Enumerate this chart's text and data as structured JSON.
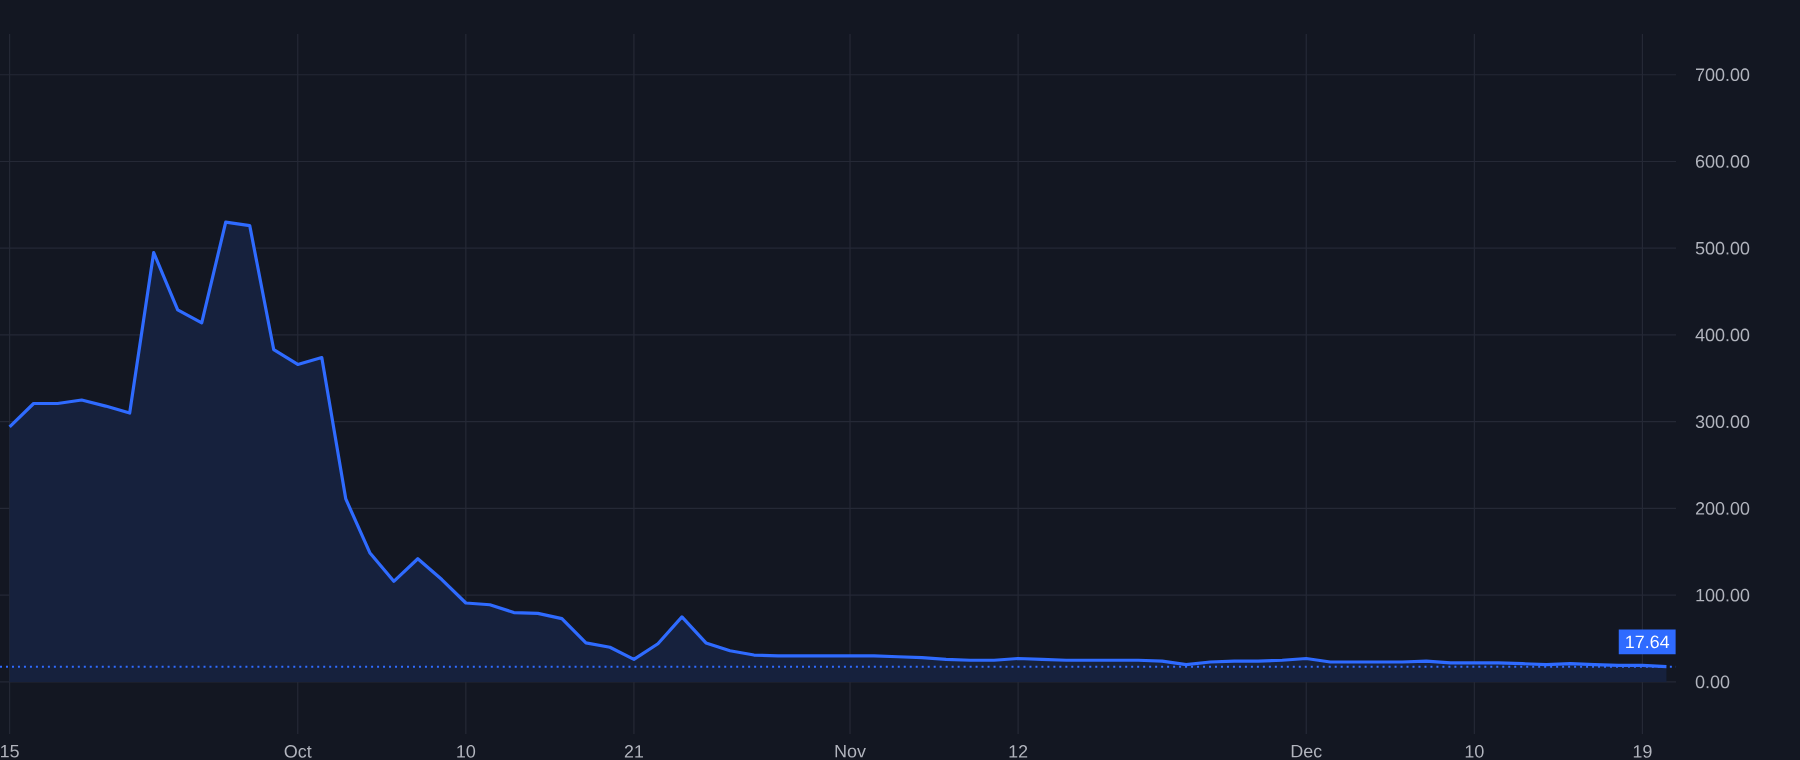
{
  "chart_data": {
    "type": "area",
    "categories": [
      "15",
      null,
      null,
      null,
      null,
      null,
      null,
      null,
      null,
      null,
      null,
      null,
      "Oct",
      null,
      null,
      null,
      null,
      null,
      null,
      "10",
      null,
      null,
      null,
      null,
      null,
      null,
      "21",
      null,
      null,
      null,
      null,
      null,
      null,
      null,
      null,
      "Nov",
      null,
      null,
      null,
      null,
      null,
      null,
      "12",
      null,
      null,
      null,
      null,
      null,
      null,
      null,
      null,
      null,
      null,
      null,
      "Dec",
      null,
      null,
      null,
      null,
      null,
      null,
      "10",
      null,
      null,
      null,
      null,
      null,
      null,
      "19",
      null
    ],
    "series": [
      {
        "color": "#2f6bff",
        "values": [
          294,
          321,
          321,
          325,
          318,
          310,
          495,
          429,
          414,
          530,
          526,
          383,
          366,
          374,
          211,
          149,
          116,
          142,
          118,
          91,
          89,
          80,
          79,
          73,
          45,
          40,
          26,
          44,
          75,
          45,
          36,
          31,
          30,
          30,
          30,
          30,
          30,
          29,
          28,
          26,
          25,
          25,
          27,
          26,
          25,
          25,
          25,
          25,
          24,
          20,
          23,
          24,
          24,
          25,
          27,
          23,
          23,
          23,
          23,
          24,
          22,
          22,
          22,
          21,
          20,
          21,
          20,
          19,
          19,
          17.64
        ]
      }
    ],
    "ylim": [
      -60,
      747
    ],
    "yticks": [
      {
        "value": 0,
        "label": "0.00"
      },
      {
        "value": 100,
        "label": "100.00"
      },
      {
        "value": 200,
        "label": "200.00"
      },
      {
        "value": 300,
        "label": "300.00"
      },
      {
        "value": 400,
        "label": "400.00"
      },
      {
        "value": 500,
        "label": "500.00"
      },
      {
        "value": 600,
        "label": "600.00"
      },
      {
        "value": 700,
        "label": "700.00"
      }
    ],
    "grid": true,
    "ref_lines": [
      {
        "axis": "y",
        "value": 17.64,
        "label": "17.64",
        "color": "#2f6bff",
        "line_style": "dotted"
      }
    ]
  }
}
